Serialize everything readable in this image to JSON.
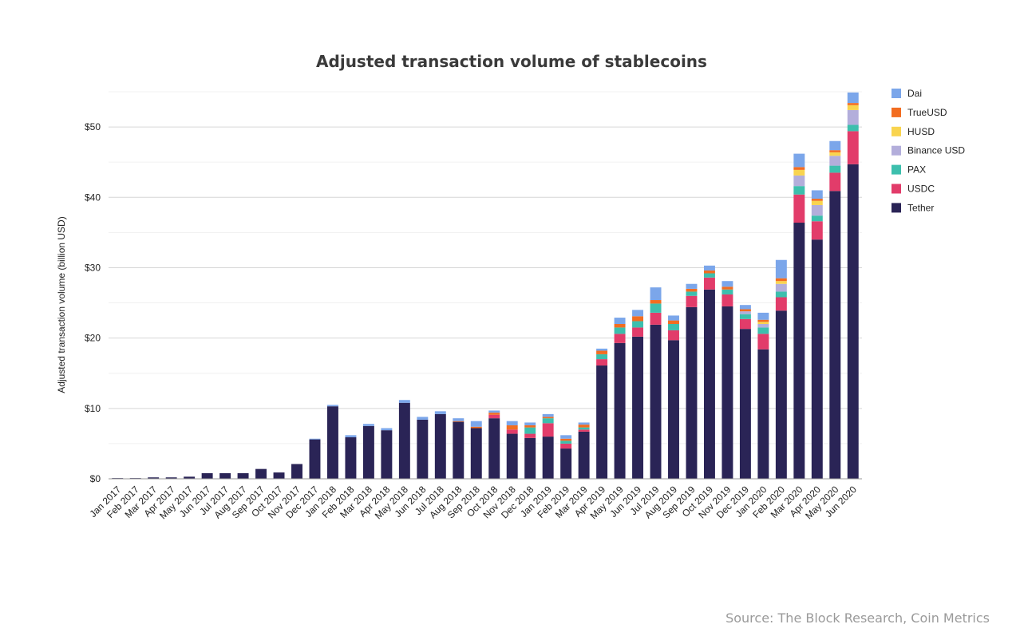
{
  "chart_data": {
    "type": "bar",
    "stacked": true,
    "title": "Adjusted transaction volume of stablecoins",
    "ylabel": "Adjusted transaction volume (billion USD)",
    "xlabel": "",
    "ylim": [
      0,
      55
    ],
    "yticks": [
      0,
      10,
      20,
      30,
      40,
      50
    ],
    "ytick_labels": [
      "$0",
      "$10",
      "$20",
      "$30",
      "$40",
      "$50"
    ],
    "grid": true,
    "legend_position": "top-right",
    "categories": [
      "Jan 2017",
      "Feb 2017",
      "Mar 2017",
      "Apr 2017",
      "May 2017",
      "Jun 2017",
      "Jul 2017",
      "Aug 2017",
      "Sep 2017",
      "Oct 2017",
      "Nov 2017",
      "Dec 2017",
      "Jan 2018",
      "Feb 2018",
      "Mar 2018",
      "Apr 2018",
      "May 2018",
      "Jun 2018",
      "Jul 2018",
      "Aug 2018",
      "Sep 2018",
      "Oct 2018",
      "Nov 2018",
      "Dec 2018",
      "Jan 2019",
      "Feb 2019",
      "Mar 2019",
      "Apr 2019",
      "May 2019",
      "Jun 2019",
      "Jul 2019",
      "Aug 2019",
      "Sep 2019",
      "Oct 2019",
      "Nov 2019",
      "Dec 2019",
      "Jan 2020",
      "Feb 2020",
      "Mar 2020",
      "Apr 2020",
      "May 2020",
      "Jun 2020"
    ],
    "series": [
      {
        "name": "Tether",
        "color": "#2a2456",
        "values": [
          0.1,
          0.1,
          0.2,
          0.2,
          0.3,
          0.8,
          0.8,
          0.8,
          1.4,
          0.9,
          2.1,
          5.6,
          10.3,
          5.9,
          7.5,
          6.9,
          10.8,
          8.4,
          9.2,
          8.1,
          7.2,
          8.6,
          6.4,
          5.8,
          6.0,
          4.3,
          6.7,
          16.1,
          19.3,
          20.2,
          21.9,
          19.7,
          24.4,
          26.9,
          24.5,
          21.3,
          18.4,
          23.9,
          36.4,
          34.0,
          40.9,
          44.7
        ]
      },
      {
        "name": "USDC",
        "color": "#e23c6a",
        "values": [
          0,
          0,
          0,
          0,
          0,
          0,
          0,
          0,
          0,
          0,
          0,
          0,
          0,
          0,
          0,
          0,
          0,
          0,
          0,
          0,
          0,
          0.5,
          0.6,
          0.6,
          1.9,
          0.7,
          0.3,
          0.9,
          1.3,
          1.3,
          1.7,
          1.4,
          1.6,
          1.7,
          1.7,
          1.4,
          2.2,
          1.9,
          4.0,
          2.6,
          2.6,
          4.7
        ]
      },
      {
        "name": "PAX",
        "color": "#3dbfad",
        "values": [
          0,
          0,
          0,
          0,
          0,
          0,
          0,
          0,
          0,
          0,
          0,
          0,
          0,
          0,
          0,
          0,
          0,
          0,
          0,
          0,
          0,
          0,
          0,
          0.9,
          0.7,
          0.4,
          0.3,
          0.7,
          0.9,
          0.9,
          1.3,
          0.9,
          0.6,
          0.6,
          0.7,
          0.7,
          0.9,
          0.8,
          1.2,
          0.8,
          1.0,
          0.9
        ]
      },
      {
        "name": "Binance USD",
        "color": "#b3aedb",
        "values": [
          0,
          0,
          0,
          0,
          0,
          0,
          0,
          0,
          0,
          0,
          0,
          0,
          0,
          0,
          0,
          0,
          0,
          0,
          0,
          0,
          0,
          0,
          0,
          0,
          0,
          0,
          0,
          0,
          0,
          0,
          0,
          0,
          0,
          0,
          0,
          0.4,
          0.5,
          1.1,
          1.5,
          1.5,
          1.4,
          2.1
        ]
      },
      {
        "name": "HUSD",
        "color": "#f9d44f",
        "values": [
          0,
          0,
          0,
          0,
          0,
          0,
          0,
          0,
          0,
          0,
          0,
          0,
          0,
          0,
          0,
          0,
          0,
          0,
          0,
          0,
          0,
          0,
          0,
          0,
          0,
          0,
          0,
          0,
          0,
          0,
          0,
          0,
          0,
          0,
          0,
          0,
          0.3,
          0.4,
          0.8,
          0.6,
          0.5,
          0.7
        ]
      },
      {
        "name": "TrueUSD",
        "color": "#f26d21",
        "values": [
          0,
          0,
          0,
          0,
          0,
          0,
          0,
          0,
          0,
          0,
          0,
          0,
          0,
          0,
          0,
          0,
          0,
          0,
          0,
          0.1,
          0.2,
          0.3,
          0.6,
          0.3,
          0.2,
          0.3,
          0.4,
          0.5,
          0.5,
          0.7,
          0.5,
          0.5,
          0.4,
          0.4,
          0.4,
          0.3,
          0.3,
          0.4,
          0.4,
          0.3,
          0.3,
          0.3
        ]
      },
      {
        "name": "Dai",
        "color": "#7ba6ea",
        "values": [
          0,
          0,
          0,
          0,
          0,
          0,
          0,
          0,
          0,
          0,
          0,
          0.1,
          0.2,
          0.3,
          0.3,
          0.3,
          0.4,
          0.4,
          0.4,
          0.4,
          0.8,
          0.3,
          0.6,
          0.4,
          0.4,
          0.5,
          0.3,
          0.3,
          0.9,
          0.9,
          1.8,
          0.7,
          0.7,
          0.7,
          0.8,
          0.6,
          1.0,
          2.6,
          1.9,
          1.2,
          1.3,
          1.5
        ]
      }
    ]
  },
  "source": "Source: The Block Research, Coin Metrics"
}
